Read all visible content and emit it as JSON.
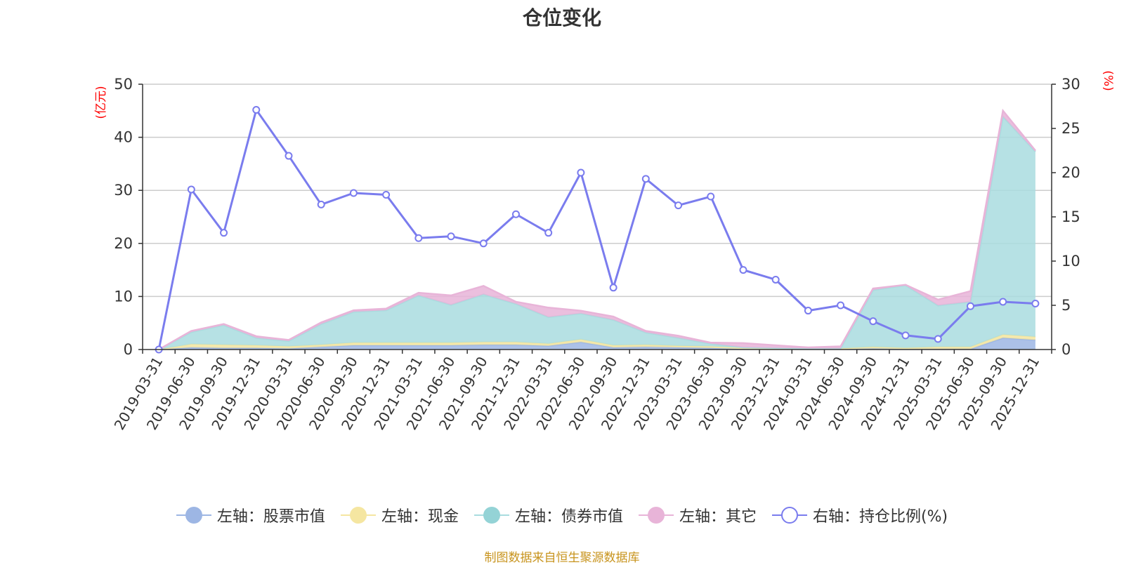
{
  "source": "制图数据来自恒生聚源数据库",
  "chart_data": {
    "type": "area",
    "title": "仓位变化",
    "left_axis_unit": "(亿元)",
    "right_axis_unit": "(%)",
    "ylim_left": [
      0,
      50
    ],
    "yticks_left": [
      0,
      10,
      20,
      30,
      40,
      50
    ],
    "ylim_right": [
      0,
      30
    ],
    "yticks_right": [
      0,
      5,
      10,
      15,
      20,
      25,
      30
    ],
    "grid": true,
    "legend_position": "bottom",
    "categories": [
      "2019-03-31",
      "2019-06-30",
      "2019-09-30",
      "2019-12-31",
      "2020-03-31",
      "2020-06-30",
      "2020-09-30",
      "2020-12-31",
      "2021-03-31",
      "2021-06-30",
      "2021-09-30",
      "2021-12-31",
      "2022-03-31",
      "2022-06-30",
      "2022-09-30",
      "2022-12-31",
      "2023-03-31",
      "2023-06-30",
      "2023-09-30",
      "2023-12-31",
      "2024-03-31",
      "2024-06-30",
      "2024-09-30",
      "2024-12-31",
      "2025-03-31",
      "2025-06-30",
      "2025-09-30",
      "2025-12-31"
    ],
    "series": [
      {
        "name": "左轴：股票市值",
        "axis": "left",
        "kind": "stacked-area",
        "color": "#9db6e4",
        "values": [
          0,
          0.4,
          0.3,
          0.3,
          0.2,
          0.5,
          0.8,
          0.8,
          0.8,
          0.8,
          0.9,
          0.9,
          0.7,
          1.4,
          0.4,
          0.5,
          0.4,
          0.3,
          0.1,
          0.1,
          0.1,
          0.1,
          0.2,
          0.1,
          0.1,
          0.1,
          2.2,
          1.8
        ]
      },
      {
        "name": "左轴：现金",
        "axis": "left",
        "kind": "stacked-area",
        "color": "#f5e6a1",
        "values": [
          0,
          0.6,
          0.6,
          0.5,
          0.4,
          0.4,
          0.5,
          0.5,
          0.5,
          0.5,
          0.5,
          0.5,
          0.4,
          0.5,
          0.4,
          0.4,
          0.3,
          0.3,
          0.2,
          0.1,
          0.1,
          0.1,
          0.3,
          0.2,
          0.4,
          0.4,
          0.6,
          0.6
        ]
      },
      {
        "name": "左轴：债券市值",
        "axis": "left",
        "kind": "stacked-area",
        "color": "#a9dcdf",
        "values": [
          0,
          2.3,
          3.7,
          1.4,
          1.0,
          3.9,
          5.8,
          6.1,
          8.9,
          7.1,
          9.0,
          7.2,
          5.0,
          4.9,
          4.8,
          2.3,
          1.5,
          0.5,
          0.1,
          0.1,
          0,
          0,
          10.7,
          11.8,
          7.8,
          8.5,
          41.1,
          34.9
        ]
      },
      {
        "name": "左轴：其它",
        "axis": "left",
        "kind": "stacked-area",
        "color": "#e8b4d8",
        "values": [
          0,
          0.2,
          0.2,
          0.3,
          0.2,
          0.3,
          0.3,
          0.3,
          0.5,
          1.8,
          1.6,
          0.4,
          1.8,
          0.5,
          0.6,
          0.3,
          0.4,
          0.2,
          0.8,
          0.5,
          0.2,
          0.4,
          0.3,
          0.1,
          1.1,
          2.0,
          1.1,
          0.2
        ]
      },
      {
        "name": "右轴：持仓比例(%)",
        "axis": "right",
        "kind": "line",
        "color": "#7a7cee",
        "values": [
          0,
          18.1,
          13.2,
          27.1,
          21.9,
          16.4,
          17.7,
          17.5,
          12.6,
          12.8,
          12.0,
          15.3,
          13.2,
          20.0,
          7.0,
          19.3,
          16.3,
          17.3,
          9.0,
          7.9,
          4.4,
          5.0,
          3.2,
          1.6,
          1.2,
          4.9,
          5.4,
          5.2
        ]
      }
    ]
  }
}
